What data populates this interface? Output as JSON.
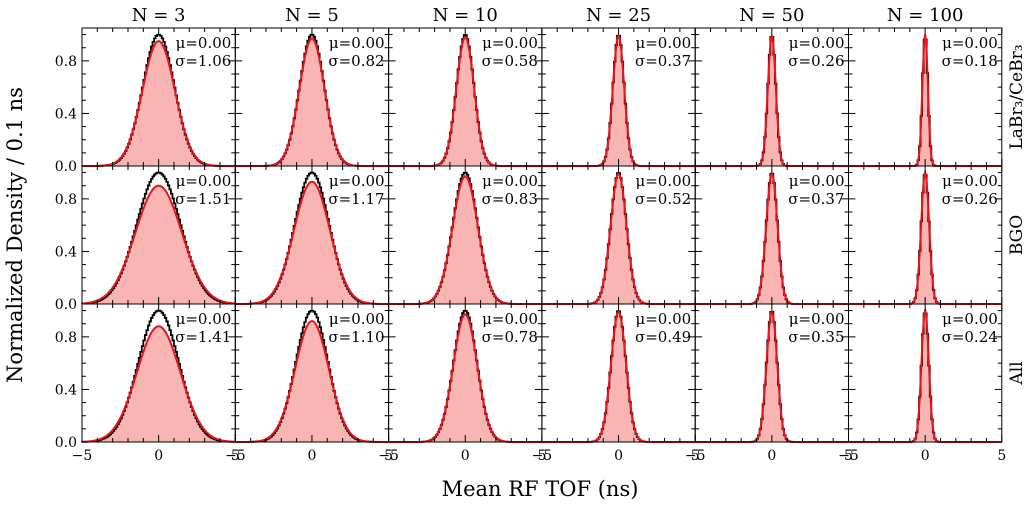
{
  "chart_data": {
    "type": "histogram-grid",
    "xlabel": "Mean RF TOF (ns)",
    "ylabel": "Normalized Density / 0.1 ns",
    "xlim": [
      -5,
      5
    ],
    "ylim": [
      0,
      1.05
    ],
    "xticks": [
      -5,
      0,
      5
    ],
    "xtick_labels": [
      "−5",
      "0",
      "5"
    ],
    "yticks": [
      0.0,
      0.4,
      0.8
    ],
    "ytick_labels": [
      "0.0",
      "0.4",
      "0.8"
    ],
    "columns": [
      "N = 3",
      "N = 5",
      "N = 10",
      "N = 25",
      "N = 50",
      "N = 100"
    ],
    "rows": [
      "LaBr₃/CeBr₃",
      "BGO",
      "All"
    ],
    "fill_color": "#f9b4b4",
    "hist_color": "#000000",
    "fit_color": "#e8141b",
    "panels": [
      [
        {
          "mu": "μ=0.00",
          "sigma": "σ=1.06",
          "sigma_value": 1.06,
          "fit_peak": 0.95,
          "hist_peak": 1.0
        },
        {
          "mu": "μ=0.00",
          "sigma": "σ=0.82",
          "sigma_value": 0.82,
          "fit_peak": 0.97,
          "hist_peak": 1.0
        },
        {
          "mu": "μ=0.00",
          "sigma": "σ=0.58",
          "sigma_value": 0.58,
          "fit_peak": 0.98,
          "hist_peak": 1.0
        },
        {
          "mu": "μ=0.00",
          "sigma": "σ=0.37",
          "sigma_value": 0.37,
          "fit_peak": 0.99,
          "hist_peak": 1.0
        },
        {
          "mu": "μ=0.00",
          "sigma": "σ=0.26",
          "sigma_value": 0.26,
          "fit_peak": 0.99,
          "hist_peak": 1.0
        },
        {
          "mu": "μ=0.00",
          "sigma": "σ=0.18",
          "sigma_value": 0.18,
          "fit_peak": 1.0,
          "hist_peak": 1.0
        }
      ],
      [
        {
          "mu": "μ=0.00",
          "sigma": "σ=1.51",
          "sigma_value": 1.51,
          "fit_peak": 0.9,
          "hist_peak": 1.0
        },
        {
          "mu": "μ=0.00",
          "sigma": "σ=1.17",
          "sigma_value": 1.17,
          "fit_peak": 0.93,
          "hist_peak": 1.0
        },
        {
          "mu": "μ=0.00",
          "sigma": "σ=0.83",
          "sigma_value": 0.83,
          "fit_peak": 0.97,
          "hist_peak": 1.0
        },
        {
          "mu": "μ=0.00",
          "sigma": "σ=0.52",
          "sigma_value": 0.52,
          "fit_peak": 0.99,
          "hist_peak": 1.0
        },
        {
          "mu": "μ=0.00",
          "sigma": "σ=0.37",
          "sigma_value": 0.37,
          "fit_peak": 0.99,
          "hist_peak": 1.0
        },
        {
          "mu": "μ=0.00",
          "sigma": "σ=0.26",
          "sigma_value": 0.26,
          "fit_peak": 1.0,
          "hist_peak": 1.0
        }
      ],
      [
        {
          "mu": "μ=0.00",
          "sigma": "σ=1.41",
          "sigma_value": 1.41,
          "fit_peak": 0.88,
          "hist_peak": 1.0
        },
        {
          "mu": "μ=0.00",
          "sigma": "σ=1.10",
          "sigma_value": 1.1,
          "fit_peak": 0.92,
          "hist_peak": 1.0
        },
        {
          "mu": "μ=0.00",
          "sigma": "σ=0.78",
          "sigma_value": 0.78,
          "fit_peak": 0.97,
          "hist_peak": 1.0
        },
        {
          "mu": "μ=0.00",
          "sigma": "σ=0.49",
          "sigma_value": 0.49,
          "fit_peak": 0.99,
          "hist_peak": 1.0
        },
        {
          "mu": "μ=0.00",
          "sigma": "σ=0.35",
          "sigma_value": 0.35,
          "fit_peak": 0.99,
          "hist_peak": 1.0
        },
        {
          "mu": "μ=0.00",
          "sigma": "σ=0.24",
          "sigma_value": 0.24,
          "fit_peak": 1.0,
          "hist_peak": 1.0
        }
      ]
    ]
  }
}
